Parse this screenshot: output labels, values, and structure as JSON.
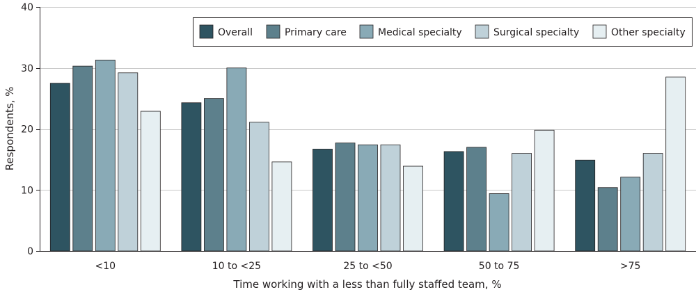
{
  "chart_data": {
    "type": "bar",
    "title": "",
    "xlabel": "Time working with a less than fully staffed team, %",
    "ylabel": "Respondents, %",
    "ylim": [
      0,
      40
    ],
    "yticks": [
      0,
      10,
      20,
      30,
      40
    ],
    "grid": true,
    "legend_position": "top-right",
    "categories": [
      "<10",
      "10 to <25",
      "25 to <50",
      "50 to 75",
      ">75"
    ],
    "series": [
      {
        "name": "Overall",
        "color": "#2e5461",
        "values": [
          27.5,
          24.3,
          16.7,
          16.3,
          14.9
        ]
      },
      {
        "name": "Primary care",
        "color": "#5d808c",
        "values": [
          30.3,
          25.0,
          17.7,
          17.0,
          10.4
        ]
      },
      {
        "name": "Medical specialty",
        "color": "#89aab6",
        "values": [
          31.3,
          30.0,
          17.4,
          9.4,
          12.1
        ]
      },
      {
        "name": "Surgical specialty",
        "color": "#bfd1d9",
        "values": [
          29.2,
          21.1,
          17.4,
          16.0,
          16.0
        ]
      },
      {
        "name": "Other specialty",
        "color": "#e6eff2",
        "values": [
          22.9,
          14.6,
          13.9,
          19.8,
          28.5
        ]
      }
    ]
  }
}
